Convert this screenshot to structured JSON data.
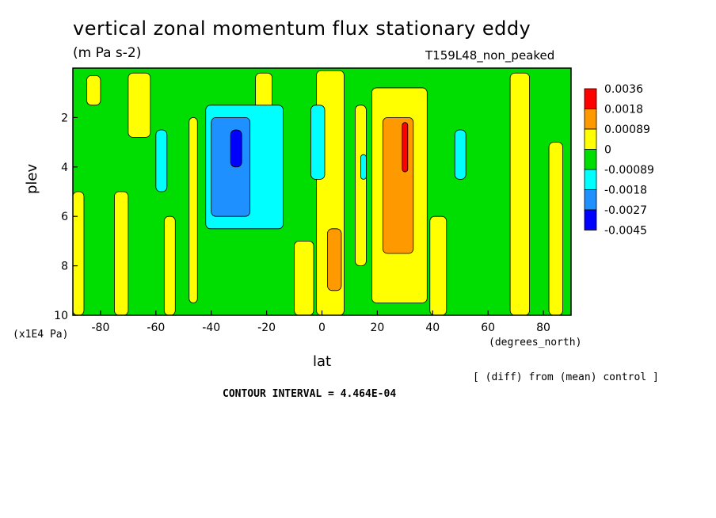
{
  "title": "vertical zonal momentum flux stationary eddy",
  "units": "(m Pa s-2)",
  "run_name": "T159L48_non_peaked",
  "footer": {
    "diff_note": "[ (diff) from (mean) control ]",
    "contour_interval": "CONTOUR INTERVAL = 4.464E-04"
  },
  "chart_data": {
    "type": "heatmap",
    "title": "vertical zonal momentum flux stationary eddy",
    "xlabel": "lat",
    "x_units": "(degrees_north)",
    "ylabel": "plev",
    "y_units": "(x1E4 Pa)",
    "xlim": [
      -90,
      90
    ],
    "ylim": [
      10,
      0
    ],
    "x_ticks": [
      -80,
      -60,
      -40,
      -20,
      0,
      20,
      40,
      60,
      80
    ],
    "x_tick_labels": [
      "-80",
      "-60",
      "-40",
      "-20",
      "0",
      "20",
      "40",
      "60",
      "80"
    ],
    "y_ticks": [
      2,
      4,
      6,
      8,
      10
    ],
    "y_tick_labels": [
      "2",
      "4",
      "6",
      "8",
      "10"
    ],
    "legend": {
      "placement": "right",
      "levels": [
        "0.0036",
        "0.0018",
        "0.00089",
        "0",
        "-0.00089",
        "-0.0018",
        "-0.0027",
        "-0.0045"
      ],
      "colors": [
        "#ff0000",
        "#ff9900",
        "#ffff00",
        "#00dd00",
        "#00ffff",
        "#1e90ff",
        "#0000ff"
      ]
    },
    "regions": [
      {
        "level": 0.00089,
        "color": "#ffff00",
        "lat": [
          -90,
          -86
        ],
        "plev": [
          5.0,
          10.0
        ]
      },
      {
        "level": 0.00089,
        "color": "#ffff00",
        "lat": [
          -85,
          -80
        ],
        "plev": [
          0.3,
          1.5
        ]
      },
      {
        "level": 0.00089,
        "color": "#ffff00",
        "lat": [
          -75,
          -70
        ],
        "plev": [
          5.0,
          10.0
        ]
      },
      {
        "level": 0.00089,
        "color": "#ffff00",
        "lat": [
          -70,
          -62
        ],
        "plev": [
          0.2,
          2.8
        ]
      },
      {
        "level": 0.00089,
        "color": "#ffff00",
        "lat": [
          -57,
          -53
        ],
        "plev": [
          6.0,
          10.0
        ]
      },
      {
        "level": 0.00089,
        "color": "#ffff00",
        "lat": [
          -48,
          -45
        ],
        "plev": [
          2.0,
          9.5
        ]
      },
      {
        "level": 0.00089,
        "color": "#ffff00",
        "lat": [
          -24,
          -18
        ],
        "plev": [
          0.2,
          2.5
        ]
      },
      {
        "level": 0.00089,
        "color": "#ffff00",
        "lat": [
          -10,
          -3
        ],
        "plev": [
          7.0,
          10.0
        ]
      },
      {
        "level": 0.00089,
        "color": "#ffff00",
        "lat": [
          -2,
          8
        ],
        "plev": [
          0.1,
          10.0
        ]
      },
      {
        "level": 0.00089,
        "color": "#ffff00",
        "lat": [
          12,
          16
        ],
        "plev": [
          1.5,
          8.0
        ]
      },
      {
        "level": 0.00089,
        "color": "#ffff00",
        "lat": [
          18,
          38
        ],
        "plev": [
          0.8,
          9.5
        ]
      },
      {
        "level": 0.00089,
        "color": "#ffff00",
        "lat": [
          39,
          45
        ],
        "plev": [
          6.0,
          10.0
        ]
      },
      {
        "level": 0.00089,
        "color": "#ffff00",
        "lat": [
          68,
          75
        ],
        "plev": [
          0.2,
          10.0
        ]
      },
      {
        "level": 0.00089,
        "color": "#ffff00",
        "lat": [
          82,
          87
        ],
        "plev": [
          3.0,
          10.0
        ]
      },
      {
        "level": 0.0018,
        "color": "#ff9900",
        "lat": [
          22,
          33
        ],
        "plev": [
          2.0,
          7.5
        ]
      },
      {
        "level": 0.0018,
        "color": "#ff9900",
        "lat": [
          2,
          7
        ],
        "plev": [
          6.5,
          9.0
        ]
      },
      {
        "level": 0.0036,
        "color": "#ff0000",
        "lat": [
          29,
          31
        ],
        "plev": [
          2.2,
          4.2
        ]
      },
      {
        "level": -0.00089,
        "color": "#00ffff",
        "lat": [
          -42,
          -14
        ],
        "plev": [
          1.5,
          6.5
        ]
      },
      {
        "level": -0.00089,
        "color": "#00ffff",
        "lat": [
          -60,
          -56
        ],
        "plev": [
          2.5,
          5.0
        ]
      },
      {
        "level": -0.00089,
        "color": "#00ffff",
        "lat": [
          -4,
          1
        ],
        "plev": [
          1.5,
          4.5
        ]
      },
      {
        "level": -0.00089,
        "color": "#00ffff",
        "lat": [
          14,
          16
        ],
        "plev": [
          3.5,
          4.5
        ]
      },
      {
        "level": -0.00089,
        "color": "#00ffff",
        "lat": [
          48,
          52
        ],
        "plev": [
          2.5,
          4.5
        ]
      },
      {
        "level": -0.0018,
        "color": "#1e90ff",
        "lat": [
          -40,
          -26
        ],
        "plev": [
          2.0,
          6.0
        ]
      },
      {
        "level": -0.0027,
        "color": "#0000ff",
        "lat": [
          -33,
          -29
        ],
        "plev": [
          2.5,
          4.0
        ]
      }
    ]
  }
}
